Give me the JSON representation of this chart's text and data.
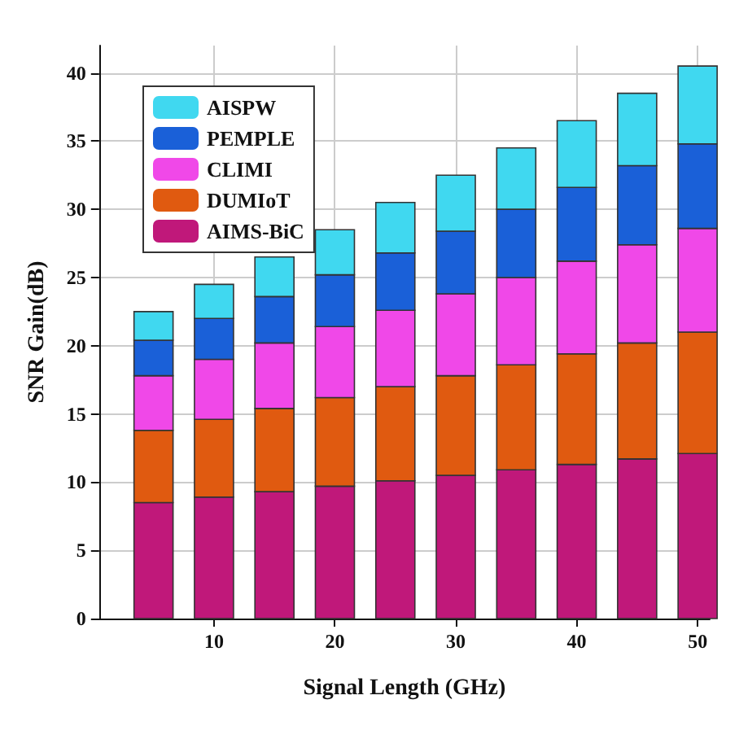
{
  "chart_data": {
    "type": "bar",
    "stacked": true,
    "xlabel": "Signal Length (GHz)",
    "ylabel": "SNR Gain(dB)",
    "x": [
      5,
      10,
      15,
      20,
      25,
      30,
      35,
      40,
      45,
      50
    ],
    "series": [
      {
        "name": "AIMS-BiC",
        "color": "#c0187a",
        "values": [
          8.5,
          8.9,
          9.3,
          9.7,
          10.1,
          10.5,
          10.9,
          11.3,
          11.7,
          12.1
        ]
      },
      {
        "name": "DUMIoT",
        "color": "#e05a10",
        "values": [
          5.3,
          5.7,
          6.1,
          6.5,
          6.9,
          7.3,
          7.7,
          8.1,
          8.5,
          8.9
        ]
      },
      {
        "name": "CLIMI",
        "color": "#f048e8",
        "values": [
          4.0,
          4.4,
          4.8,
          5.2,
          5.6,
          6.0,
          6.4,
          6.8,
          7.2,
          7.6
        ]
      },
      {
        "name": "PEMPLE",
        "color": "#1a60d8",
        "values": [
          2.6,
          3.0,
          3.4,
          3.8,
          4.2,
          4.6,
          5.0,
          5.4,
          5.8,
          6.2
        ]
      },
      {
        "name": "AISPW",
        "color": "#40d8f0",
        "values": [
          2.1,
          2.5,
          2.9,
          3.3,
          3.7,
          4.1,
          4.5,
          4.9,
          5.3,
          5.7
        ]
      }
    ],
    "xlim": [
      0.5,
      51
    ],
    "xticks": [
      10,
      20,
      30,
      40,
      50
    ],
    "ylim": [
      0,
      42
    ],
    "yticks": [
      0,
      5,
      10,
      15,
      20,
      25,
      30,
      35,
      40
    ],
    "grid": true,
    "legend": "top left"
  }
}
